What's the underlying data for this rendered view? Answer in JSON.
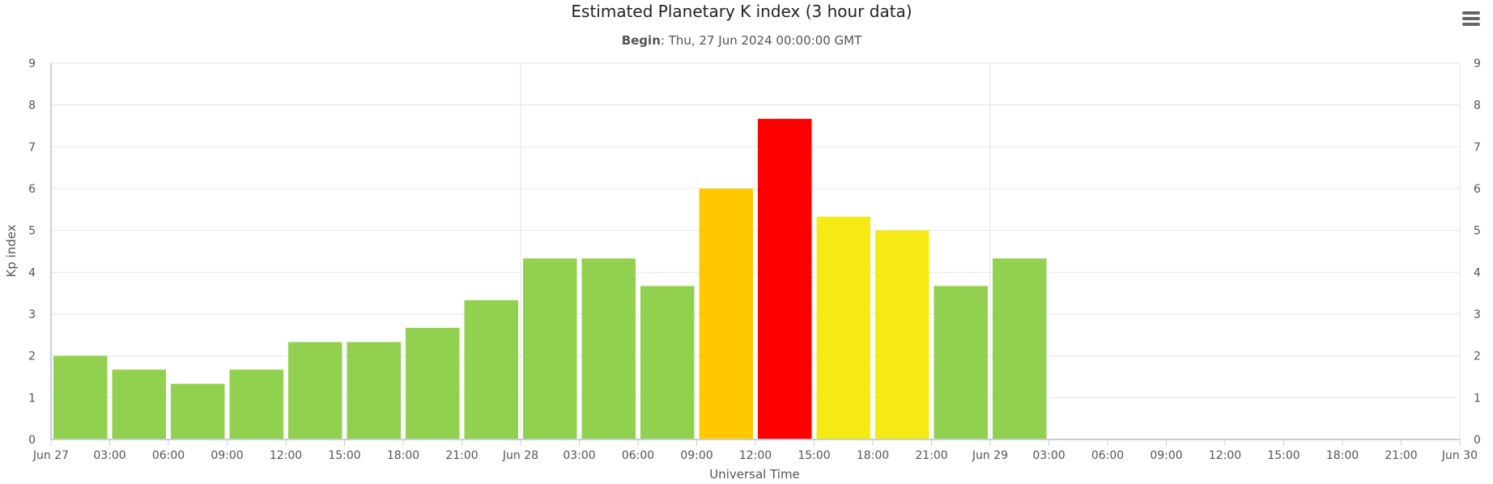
{
  "chart_data": {
    "type": "bar",
    "title": "Estimated Planetary K index (3 hour data)",
    "subtitle": {
      "label": "Begin",
      "value": ": Thu, 27 Jun 2024 00:00:00 GMT"
    },
    "xlabel": "Universal Time",
    "ylabel": "Kp index",
    "ylim": [
      0,
      9
    ],
    "yticks": [
      "0",
      "1",
      "2",
      "3",
      "4",
      "5",
      "6",
      "7",
      "8",
      "9"
    ],
    "x_range_hours": [
      0,
      72
    ],
    "xticks": [
      "Jun 27",
      "03:00",
      "06:00",
      "09:00",
      "12:00",
      "15:00",
      "18:00",
      "21:00",
      "Jun 28",
      "03:00",
      "06:00",
      "09:00",
      "12:00",
      "15:00",
      "18:00",
      "21:00",
      "Jun 29",
      "03:00",
      "06:00",
      "09:00",
      "12:00",
      "15:00",
      "18:00",
      "21:00",
      "Jun 30"
    ],
    "grid": true,
    "bars": [
      {
        "time": "Jun 27 00:00",
        "value": 2.0,
        "color": "#92d050"
      },
      {
        "time": "Jun 27 03:00",
        "value": 1.67,
        "color": "#92d050"
      },
      {
        "time": "Jun 27 06:00",
        "value": 1.33,
        "color": "#92d050"
      },
      {
        "time": "Jun 27 09:00",
        "value": 1.67,
        "color": "#92d050"
      },
      {
        "time": "Jun 27 12:00",
        "value": 2.33,
        "color": "#92d050"
      },
      {
        "time": "Jun 27 15:00",
        "value": 2.33,
        "color": "#92d050"
      },
      {
        "time": "Jun 27 18:00",
        "value": 2.67,
        "color": "#92d050"
      },
      {
        "time": "Jun 27 21:00",
        "value": 3.33,
        "color": "#92d050"
      },
      {
        "time": "Jun 28 00:00",
        "value": 4.33,
        "color": "#92d050"
      },
      {
        "time": "Jun 28 03:00",
        "value": 4.33,
        "color": "#92d050"
      },
      {
        "time": "Jun 28 06:00",
        "value": 3.67,
        "color": "#92d050"
      },
      {
        "time": "Jun 28 09:00",
        "value": 6.0,
        "color": "#ffc800"
      },
      {
        "time": "Jun 28 12:00",
        "value": 7.67,
        "color": "#ff0000"
      },
      {
        "time": "Jun 28 15:00",
        "value": 5.33,
        "color": "#f5ea14"
      },
      {
        "time": "Jun 28 18:00",
        "value": 5.0,
        "color": "#f5ea14"
      },
      {
        "time": "Jun 28 21:00",
        "value": 3.67,
        "color": "#92d050"
      },
      {
        "time": "Jun 29 00:00",
        "value": 4.33,
        "color": "#92d050"
      }
    ]
  },
  "menu": {
    "icon": "hamburger-menu-icon"
  }
}
